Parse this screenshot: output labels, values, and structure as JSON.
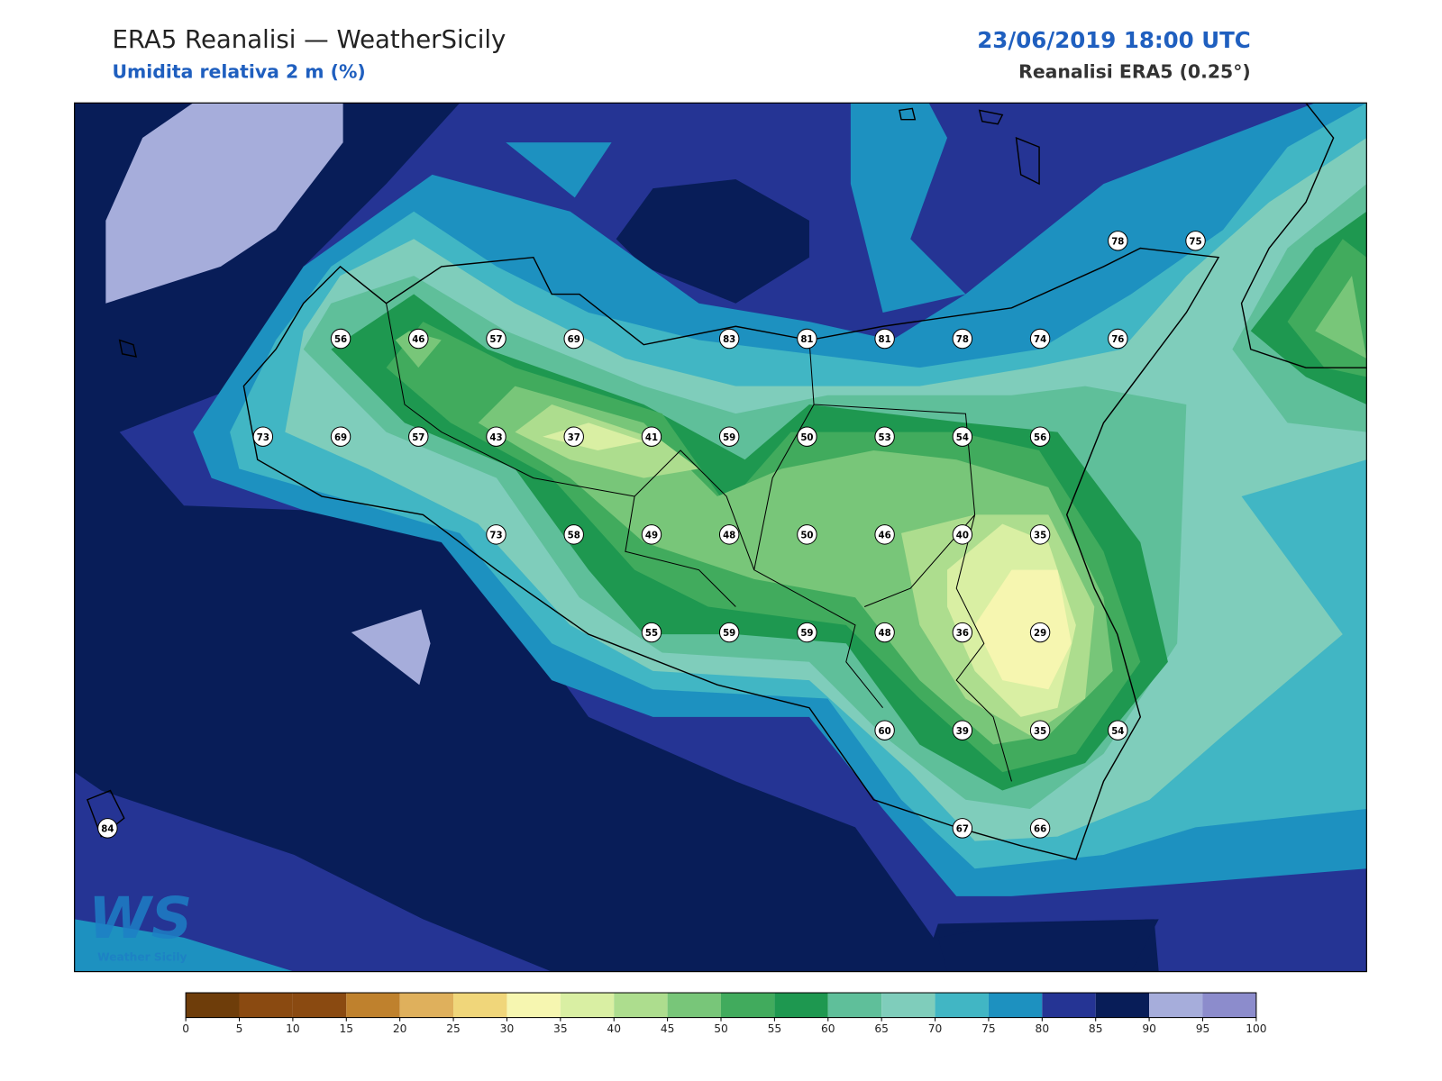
{
  "header": {
    "title": "ERA5 Reanalisi — WeatherSicily",
    "subtitle": "Umidita relativa 2 m (%)",
    "datetime": "23/06/2019 18:00 UTC",
    "source": "Reanalisi ERA5 (0.25°)"
  },
  "map": {
    "stations": [
      [
        null,
        null,
        null,
        null,
        null,
        null,
        null,
        null,
        null,
        null,
        null,
        null,
        null,
        78,
        75
      ],
      [
        null,
        null,
        null,
        56,
        46,
        57,
        69,
        null,
        83,
        81,
        81,
        78,
        74,
        76,
        null
      ],
      [
        null,
        null,
        73,
        69,
        57,
        43,
        37,
        41,
        59,
        50,
        53,
        54,
        56,
        null,
        null
      ],
      [
        null,
        null,
        null,
        null,
        null,
        73,
        58,
        49,
        48,
        50,
        46,
        40,
        35,
        null,
        null
      ],
      [
        null,
        null,
        null,
        null,
        null,
        null,
        null,
        55,
        59,
        59,
        48,
        36,
        29,
        null,
        null
      ],
      [
        null,
        null,
        null,
        null,
        null,
        null,
        null,
        null,
        null,
        null,
        60,
        39,
        35,
        54,
        null
      ],
      [
        84,
        null,
        null,
        null,
        null,
        null,
        null,
        null,
        null,
        null,
        null,
        67,
        66,
        null,
        null
      ]
    ]
  },
  "colorbar": {
    "ticks": [
      0,
      5,
      10,
      15,
      20,
      25,
      30,
      35,
      40,
      45,
      50,
      55,
      60,
      65,
      70,
      75,
      80,
      85,
      90,
      95,
      100
    ],
    "colors": [
      "#6e3d0a",
      "#8a4a11",
      "#8a4a11",
      "#bf812d",
      "#dfb05c",
      "#f0d67a",
      "#f6f6b0",
      "#d9efa3",
      "#addd8e",
      "#78c679",
      "#41ab5d",
      "#1e9850",
      "#5fbf9a",
      "#7fcdbb",
      "#41b6c4",
      "#1d91c0",
      "#253494",
      "#081d58",
      "#a6addb",
      "#8c8ccc"
    ]
  },
  "logo": {
    "mark": "WS",
    "name": "Weather Sicily"
  }
}
